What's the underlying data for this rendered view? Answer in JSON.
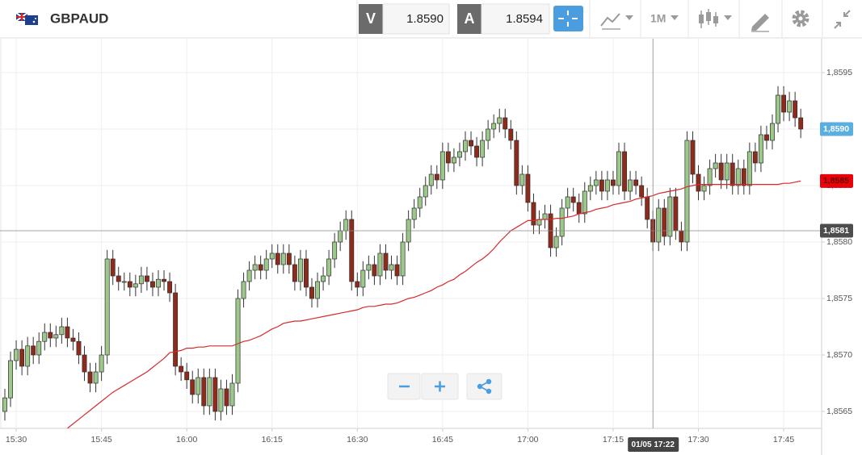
{
  "header": {
    "symbol": "GBPAUD",
    "bid_label": "V",
    "bid": "1.8590",
    "ask_label": "A",
    "ask": "1.8594",
    "timeframe": "1M"
  },
  "chart_data": {
    "type": "candlestick",
    "categories": [
      "15:28",
      "15:29",
      "15:30",
      "15:31",
      "15:32",
      "15:33",
      "15:34",
      "15:35",
      "15:36",
      "15:37",
      "15:38",
      "15:39",
      "15:40",
      "15:41",
      "15:42",
      "15:43",
      "15:44",
      "15:45",
      "15:46",
      "15:47",
      "15:48",
      "15:49",
      "15:50",
      "15:51",
      "15:52",
      "15:53",
      "15:54",
      "15:55",
      "15:56",
      "15:57",
      "15:58",
      "15:59",
      "16:00",
      "16:01",
      "16:02",
      "16:03",
      "16:04",
      "16:05",
      "16:06",
      "16:07",
      "16:08",
      "16:09",
      "16:10",
      "16:11",
      "16:12",
      "16:13",
      "16:14",
      "16:15",
      "16:16",
      "16:17",
      "16:18",
      "16:19",
      "16:20",
      "16:21",
      "16:22",
      "16:23",
      "16:24",
      "16:25",
      "16:26",
      "16:27",
      "16:28",
      "16:29",
      "16:30",
      "16:31",
      "16:32",
      "16:33",
      "16:34",
      "16:35",
      "16:36",
      "16:37",
      "16:38",
      "16:39",
      "16:40",
      "16:41",
      "16:42",
      "16:43",
      "16:44",
      "16:45",
      "16:46",
      "16:47",
      "16:48",
      "16:49",
      "16:50",
      "16:51",
      "16:52",
      "16:53",
      "16:54",
      "16:55",
      "16:56",
      "16:57",
      "16:58",
      "16:59",
      "17:00",
      "17:01",
      "17:02",
      "17:03",
      "17:04",
      "17:05",
      "17:06",
      "17:07",
      "17:08",
      "17:09",
      "17:10",
      "17:11",
      "17:12",
      "17:13",
      "17:14",
      "17:15",
      "17:16",
      "17:17",
      "17:18",
      "17:19",
      "17:20",
      "17:21",
      "17:22",
      "17:23",
      "17:24",
      "17:25",
      "17:26",
      "17:27",
      "17:28",
      "17:29",
      "17:30",
      "17:31",
      "17:32",
      "17:33",
      "17:34",
      "17:35",
      "17:36",
      "17:37",
      "17:38",
      "17:39",
      "17:40",
      "17:41",
      "17:42",
      "17:43",
      "17:44",
      "17:45",
      "17:46",
      "17:47",
      "17:48"
    ],
    "ohlc": {
      "open": [
        1.8565,
        1.85662,
        1.85695,
        1.85705,
        1.8569,
        1.85708,
        1.857,
        1.85712,
        1.8572,
        1.85715,
        1.85718,
        1.85725,
        1.85715,
        1.85712,
        1.857,
        1.85685,
        1.85675,
        1.85685,
        1.857,
        1.85785,
        1.8577,
        1.85765,
        1.85765,
        1.8576,
        1.85763,
        1.8577,
        1.85765,
        1.8576,
        1.85767,
        1.85765,
        1.85755,
        1.8569,
        1.85685,
        1.85678,
        1.85665,
        1.8568,
        1.85655,
        1.8568,
        1.8565,
        1.8567,
        1.85655,
        1.85675,
        1.8575,
        1.85765,
        1.85775,
        1.8578,
        1.85775,
        1.85785,
        1.8579,
        1.8578,
        1.8579,
        1.8578,
        1.85765,
        1.85785,
        1.8576,
        1.8575,
        1.85765,
        1.8577,
        1.85785,
        1.858,
        1.8581,
        1.8582,
        1.85765,
        1.8576,
        1.85775,
        1.8578,
        1.8577,
        1.8579,
        1.85775,
        1.8578,
        1.8577,
        1.858,
        1.8582,
        1.8583,
        1.8584,
        1.8585,
        1.8586,
        1.85855,
        1.8588,
        1.8587,
        1.85875,
        1.8588,
        1.8589,
        1.85885,
        1.85875,
        1.8589,
        1.859,
        1.85905,
        1.8591,
        1.859,
        1.8589,
        1.8585,
        1.8586,
        1.85835,
        1.85815,
        1.8582,
        1.85825,
        1.85795,
        1.85805,
        1.8583,
        1.8584,
        1.85835,
        1.85825,
        1.85845,
        1.8585,
        1.85855,
        1.85845,
        1.85855,
        1.8585,
        1.8588,
        1.85845,
        1.85855,
        1.8585,
        1.8584,
        1.8582,
        1.858,
        1.8583,
        1.85805,
        1.8584,
        1.8581,
        1.858,
        1.8589,
        1.8586,
        1.85845,
        1.8585,
        1.85865,
        1.8587,
        1.85855,
        1.8587,
        1.8585,
        1.85865,
        1.8585,
        1.8588,
        1.8587,
        1.85895,
        1.8589,
        1.85905,
        1.8593,
        1.85915,
        1.85925,
        1.8591
      ],
      "high": [
        1.8567,
        1.85703,
        1.85713,
        1.85713,
        1.85716,
        1.85716,
        1.8572,
        1.85728,
        1.85728,
        1.85726,
        1.85733,
        1.85733,
        1.85723,
        1.8572,
        1.85708,
        1.85693,
        1.85693,
        1.85708,
        1.85793,
        1.85793,
        1.85778,
        1.85773,
        1.85773,
        1.85771,
        1.85778,
        1.85778,
        1.85773,
        1.85775,
        1.85775,
        1.85773,
        1.85763,
        1.85698,
        1.85693,
        1.85686,
        1.85688,
        1.85688,
        1.85688,
        1.85688,
        1.85678,
        1.85678,
        1.85683,
        1.85758,
        1.85773,
        1.85783,
        1.85788,
        1.85788,
        1.85793,
        1.85798,
        1.85798,
        1.85798,
        1.85798,
        1.85788,
        1.85793,
        1.85793,
        1.85768,
        1.85773,
        1.85778,
        1.85793,
        1.85808,
        1.85818,
        1.85828,
        1.85828,
        1.85773,
        1.85783,
        1.85788,
        1.85788,
        1.85798,
        1.85798,
        1.85788,
        1.85788,
        1.85808,
        1.85828,
        1.85838,
        1.85848,
        1.85858,
        1.85868,
        1.85868,
        1.85888,
        1.85888,
        1.85883,
        1.85888,
        1.85898,
        1.85898,
        1.85893,
        1.85898,
        1.85908,
        1.85913,
        1.85918,
        1.85918,
        1.85908,
        1.85898,
        1.85868,
        1.85868,
        1.85843,
        1.85828,
        1.85833,
        1.85833,
        1.85813,
        1.85838,
        1.85848,
        1.85848,
        1.85843,
        1.85853,
        1.85858,
        1.85863,
        1.85863,
        1.85863,
        1.85863,
        1.85888,
        1.85888,
        1.85863,
        1.85863,
        1.85858,
        1.85848,
        1.85828,
        1.85838,
        1.85838,
        1.85848,
        1.85848,
        1.85818,
        1.85898,
        1.85898,
        1.85868,
        1.85858,
        1.85873,
        1.85878,
        1.85878,
        1.85878,
        1.85878,
        1.85873,
        1.85873,
        1.85888,
        1.85888,
        1.85903,
        1.85903,
        1.85913,
        1.85938,
        1.85938,
        1.85933,
        1.85933,
        1.85918
      ],
      "low": [
        1.85642,
        1.85654,
        1.85687,
        1.85682,
        1.85682,
        1.85692,
        1.85692,
        1.85704,
        1.85707,
        1.85707,
        1.8571,
        1.85707,
        1.85704,
        1.85692,
        1.85677,
        1.85667,
        1.85667,
        1.85677,
        1.85692,
        1.85762,
        1.85757,
        1.85757,
        1.85752,
        1.85752,
        1.85755,
        1.85757,
        1.85752,
        1.85752,
        1.85757,
        1.85747,
        1.85682,
        1.85677,
        1.8567,
        1.85657,
        1.85657,
        1.85647,
        1.85647,
        1.85642,
        1.85642,
        1.85647,
        1.85647,
        1.85667,
        1.85742,
        1.85757,
        1.85767,
        1.85767,
        1.85767,
        1.85777,
        1.85772,
        1.85772,
        1.85772,
        1.85757,
        1.85757,
        1.85752,
        1.85742,
        1.85742,
        1.85757,
        1.85762,
        1.85777,
        1.85792,
        1.85802,
        1.85757,
        1.85752,
        1.85752,
        1.85767,
        1.85762,
        1.85762,
        1.85767,
        1.85767,
        1.85762,
        1.85762,
        1.85792,
        1.85812,
        1.85822,
        1.85832,
        1.85842,
        1.85847,
        1.85847,
        1.85862,
        1.85862,
        1.85867,
        1.85872,
        1.85877,
        1.85867,
        1.85867,
        1.85882,
        1.85892,
        1.85897,
        1.85892,
        1.85882,
        1.85842,
        1.85842,
        1.85827,
        1.85807,
        1.85807,
        1.85812,
        1.85787,
        1.85787,
        1.85797,
        1.85822,
        1.85827,
        1.85817,
        1.85817,
        1.85837,
        1.85842,
        1.85837,
        1.85837,
        1.85842,
        1.85842,
        1.85837,
        1.85837,
        1.85842,
        1.85832,
        1.85812,
        1.85792,
        1.85792,
        1.85797,
        1.85797,
        1.85802,
        1.85792,
        1.85792,
        1.85852,
        1.85837,
        1.85837,
        1.85842,
        1.85857,
        1.85847,
        1.85847,
        1.85842,
        1.85842,
        1.85842,
        1.85842,
        1.85862,
        1.85862,
        1.85882,
        1.85882,
        1.85897,
        1.85907,
        1.85907,
        1.85902,
        1.85892
      ],
      "close": [
        1.85662,
        1.85695,
        1.85705,
        1.8569,
        1.85708,
        1.857,
        1.85712,
        1.8572,
        1.85715,
        1.85718,
        1.85725,
        1.85715,
        1.85712,
        1.857,
        1.85685,
        1.85675,
        1.85685,
        1.857,
        1.85785,
        1.8577,
        1.85765,
        1.85765,
        1.8576,
        1.85763,
        1.8577,
        1.85765,
        1.8576,
        1.85767,
        1.85765,
        1.85755,
        1.8569,
        1.85685,
        1.85678,
        1.85665,
        1.8568,
        1.85655,
        1.8568,
        1.8565,
        1.8567,
        1.85655,
        1.85675,
        1.8575,
        1.85765,
        1.85775,
        1.8578,
        1.85775,
        1.85785,
        1.8579,
        1.8578,
        1.8579,
        1.8578,
        1.85765,
        1.85785,
        1.8576,
        1.8575,
        1.85765,
        1.8577,
        1.85785,
        1.858,
        1.8581,
        1.8582,
        1.85765,
        1.8576,
        1.85775,
        1.8578,
        1.8577,
        1.8579,
        1.85775,
        1.8578,
        1.8577,
        1.858,
        1.8582,
        1.8583,
        1.8584,
        1.8585,
        1.8586,
        1.85855,
        1.8588,
        1.8587,
        1.85875,
        1.8588,
        1.8589,
        1.85885,
        1.85875,
        1.8589,
        1.859,
        1.85905,
        1.8591,
        1.859,
        1.8589,
        1.8585,
        1.8586,
        1.85835,
        1.85815,
        1.8582,
        1.85825,
        1.85795,
        1.85805,
        1.8583,
        1.8584,
        1.85835,
        1.85825,
        1.85845,
        1.8585,
        1.85855,
        1.85845,
        1.85855,
        1.8585,
        1.8588,
        1.85845,
        1.85855,
        1.8585,
        1.8584,
        1.8582,
        1.858,
        1.8583,
        1.85805,
        1.8584,
        1.8581,
        1.858,
        1.8589,
        1.8586,
        1.85845,
        1.8585,
        1.85865,
        1.8587,
        1.85855,
        1.8587,
        1.8585,
        1.85865,
        1.8585,
        1.8588,
        1.8587,
        1.85895,
        1.8589,
        1.85905,
        1.8593,
        1.85915,
        1.85925,
        1.8591,
        1.859
      ]
    },
    "up_color": "#9cc98a",
    "down_color": "#8e2b1b",
    "moving_average": {
      "color": "#d62a2a",
      "label": "1,8585",
      "tag_color": "#e8000b",
      "values": [
        null,
        null,
        null,
        null,
        null,
        null,
        null,
        null,
        null,
        null,
        null,
        1.85635,
        1.85639,
        1.85643,
        1.85647,
        1.85651,
        1.85655,
        1.85659,
        1.85663,
        1.85667,
        1.8567,
        1.85673,
        1.85676,
        1.85679,
        1.85682,
        1.85685,
        1.85689,
        1.85693,
        1.85697,
        1.85702,
        1.85703,
        1.85704,
        1.85706,
        1.85706,
        1.85707,
        1.85707,
        1.85708,
        1.85708,
        1.85708,
        1.85708,
        1.85708,
        1.8571,
        1.85712,
        1.85713,
        1.85715,
        1.85717,
        1.8572,
        1.85723,
        1.85725,
        1.85728,
        1.85729,
        1.8573,
        1.8573,
        1.85731,
        1.85732,
        1.85733,
        1.85734,
        1.85735,
        1.85736,
        1.85737,
        1.85738,
        1.85739,
        1.8574,
        1.85742,
        1.85743,
        1.85743,
        1.85744,
        1.85745,
        1.85745,
        1.85746,
        1.85748,
        1.8575,
        1.85751,
        1.85753,
        1.85755,
        1.85757,
        1.8576,
        1.85762,
        1.85765,
        1.85767,
        1.85771,
        1.85774,
        1.85778,
        1.85782,
        1.85785,
        1.85789,
        1.85794,
        1.858,
        1.85805,
        1.8581,
        1.85813,
        1.85816,
        1.85819,
        1.85819,
        1.8582,
        1.8582,
        1.8582,
        1.85821,
        1.85821,
        1.85822,
        1.85823,
        1.85825,
        1.85826,
        1.85827,
        1.85829,
        1.8583,
        1.85831,
        1.85833,
        1.85834,
        1.85835,
        1.85836,
        1.85838,
        1.85839,
        1.8584,
        1.85841,
        1.85843,
        1.85844,
        1.85845,
        1.85846,
        1.85847,
        1.85849,
        1.8585,
        1.85851,
        1.85851,
        1.85851,
        1.85851,
        1.85851,
        1.85851,
        1.85851,
        1.85851,
        1.85851,
        1.85851,
        1.85851,
        1.85851,
        1.85851,
        1.85851,
        1.85851,
        1.85852,
        1.85852,
        1.85853,
        1.85854
      ]
    },
    "last_price_label": "1,8590",
    "last_price_color": "#5aaee0",
    "crosshair": {
      "x": "17:22",
      "x_label": "01/05 17:22",
      "y": 1.8581,
      "y_label": "1,8581"
    },
    "ylim": [
      1.85635,
      1.8598
    ],
    "yticks": [
      {
        "value": 1.8565,
        "label": "1,8565"
      },
      {
        "value": 1.857,
        "label": "1,8570"
      },
      {
        "value": 1.8575,
        "label": "1,8575"
      },
      {
        "value": 1.858,
        "label": "1,8580"
      },
      {
        "value": 1.8585,
        "label": "1,8585"
      },
      {
        "value": 1.859,
        "label": "1,8590"
      },
      {
        "value": 1.8595,
        "label": "1,8595"
      }
    ],
    "xticks": [
      "15:30",
      "15:45",
      "16:00",
      "16:15",
      "16:30",
      "16:45",
      "17:00",
      "17:15",
      "17:30",
      "17:45"
    ],
    "grid": true
  }
}
